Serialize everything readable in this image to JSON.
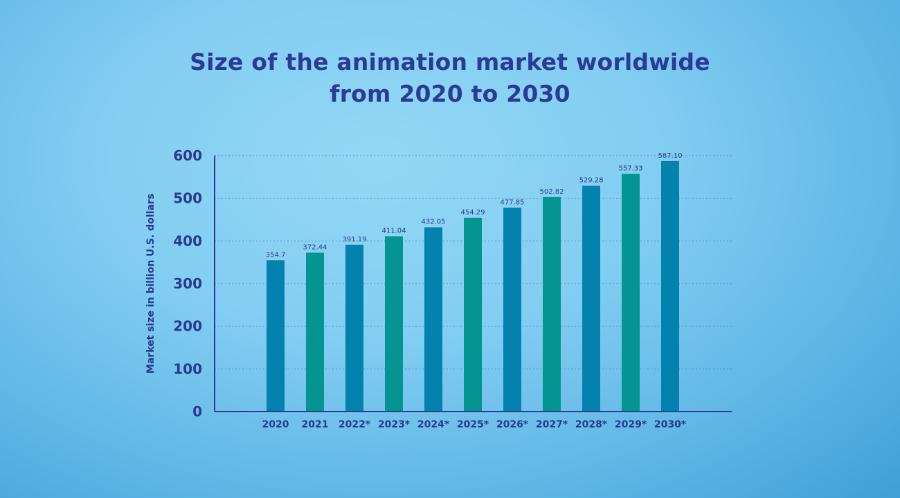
{
  "chart_data": {
    "type": "bar",
    "title_lines": [
      "Size of the animation market worldwide",
      "from 2020 to 2030"
    ],
    "ylabel": "Market size in billion U.S. dollars",
    "xlabel": "",
    "categories": [
      "2020",
      "2021",
      "2022*",
      "2023*",
      "2024*",
      "2025*",
      "2026*",
      "2027*",
      "2028*",
      "2029*",
      "2030*"
    ],
    "values": [
      354.7,
      372.44,
      391.19,
      411.04,
      432.05,
      454.29,
      477.85,
      502.82,
      529.28,
      557.33,
      587.1
    ],
    "value_labels": [
      "354.7",
      "372.44",
      "391.19",
      "411.04",
      "432.05",
      "454.29",
      "477.85",
      "502.82",
      "529.28",
      "557.33",
      "587.10"
    ],
    "yticks": [
      0,
      100,
      200,
      300,
      400,
      500,
      600
    ],
    "ylim": [
      0,
      600
    ],
    "grid": true,
    "legend": false,
    "bar_colors": [
      "#0282ad",
      "#049593"
    ]
  }
}
